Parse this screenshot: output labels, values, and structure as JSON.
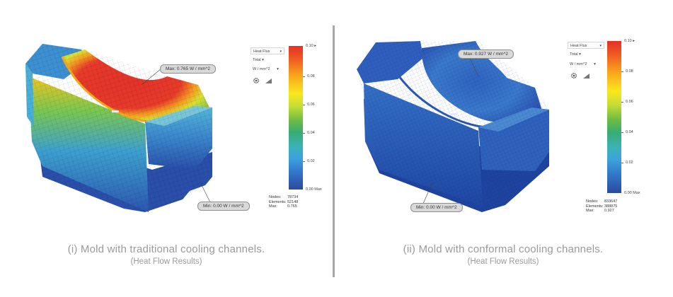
{
  "left": {
    "legend": {
      "quantity": "Heat Flux",
      "component": "Total",
      "unit": "W / mm^2",
      "max_label": "0.10",
      "ticks": [
        "0.08",
        "0.06",
        "0.04",
        "0.02"
      ],
      "min_label": "0.00 Max"
    },
    "stats": {
      "nodes_label": "Nodes:",
      "nodes": "78734",
      "elements_label": "Elements:",
      "elements": "52148",
      "max_label": "Max:",
      "max": "0.765"
    },
    "max_callout": "Max: 0.765 W / mm^2",
    "min_callout": "Min: 0.00 W / mm^2",
    "caption": "(i) Mold with traditional cooling channels.",
    "subcaption": "(Heat Flow Results)",
    "colors": {
      "hot": "#e3342a",
      "cool": "#2c5bb5"
    }
  },
  "right": {
    "legend": {
      "quantity": "Heat Flux",
      "component": "Total",
      "unit": "W / mm^2",
      "max_label": "0.10",
      "ticks": [
        "0.08",
        "0.06",
        "0.04",
        "0.02"
      ],
      "min_label": "0.00 Max"
    },
    "stats": {
      "nodes_label": "Nodes:",
      "nodes": "833647",
      "elements_label": "Elements:",
      "elements": "388875",
      "max_label": "Max:",
      "max": "0.927"
    },
    "max_callout": "Max: 0.927 W / mm^2",
    "min_callout": "Min: 0.00 W / mm^2",
    "caption": "(ii) Mold with conformal cooling channels.",
    "subcaption": "(Heat Flow Results)",
    "colors": {
      "base": "#2b57b5",
      "highlight": "#4f98d8"
    }
  },
  "icons": [
    "settings-gear-icon",
    "signal-bars-icon",
    "dropdown-caret-icon"
  ]
}
